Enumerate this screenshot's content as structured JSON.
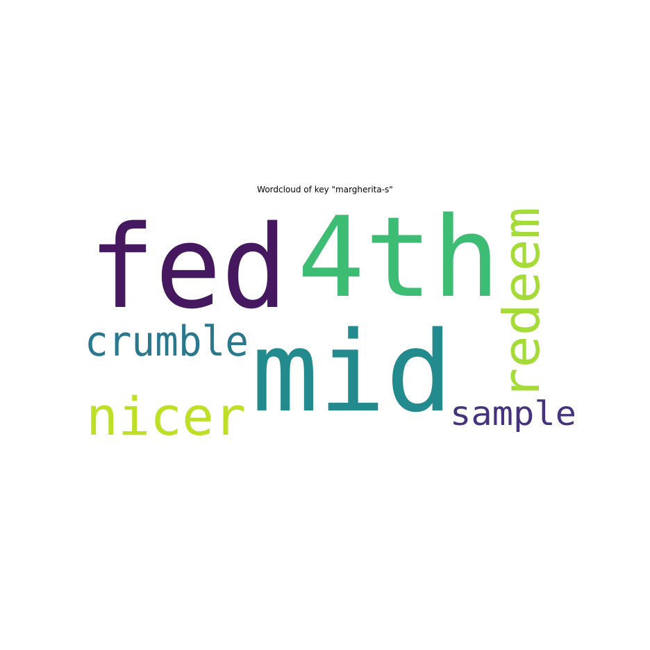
{
  "title": "Wordcloud of key \"margherita-s\"",
  "words": [
    {
      "id": "fed",
      "text": "fed",
      "color": "#46185f",
      "orientation": "horizontal"
    },
    {
      "id": "4th",
      "text": "4th",
      "color": "#3dbc74",
      "orientation": "horizontal"
    },
    {
      "id": "mid",
      "text": "mid",
      "color": "#238a8d",
      "orientation": "horizontal"
    },
    {
      "id": "redeem",
      "text": "redeem",
      "color": "#a5db36",
      "orientation": "vertical"
    },
    {
      "id": "crumble",
      "text": "crumble",
      "color": "#2a788e",
      "orientation": "horizontal"
    },
    {
      "id": "nicer",
      "text": "nicer",
      "color": "#bddf26",
      "orientation": "horizontal"
    },
    {
      "id": "sample",
      "text": "sample",
      "color": "#46337e",
      "orientation": "horizontal"
    }
  ]
}
